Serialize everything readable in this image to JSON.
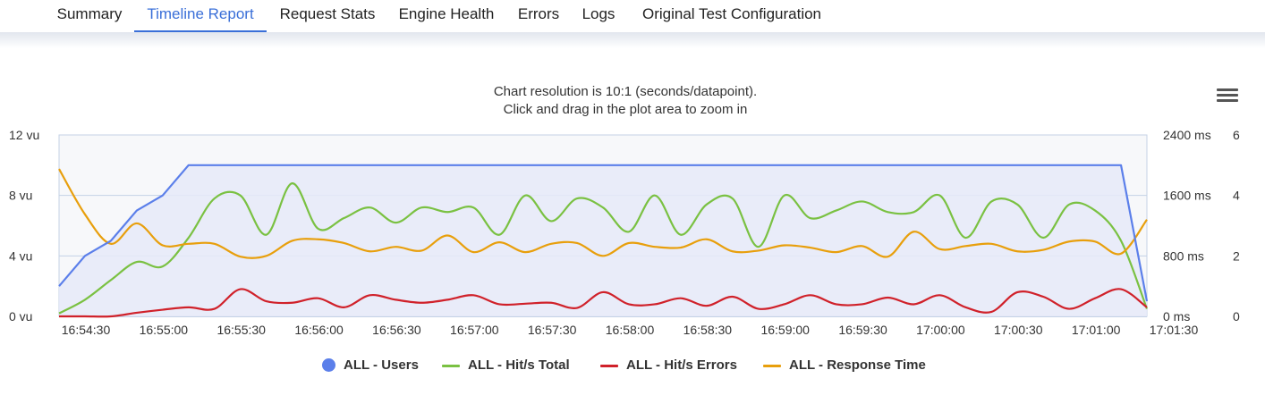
{
  "tabs": [
    {
      "label": "Summary",
      "active": false
    },
    {
      "label": "Timeline Report",
      "active": true
    },
    {
      "label": "Request Stats",
      "active": false
    },
    {
      "label": "Engine Health",
      "active": false
    },
    {
      "label": "Errors",
      "active": false
    },
    {
      "label": "Logs",
      "active": false
    },
    {
      "label": "Original Test Configuration",
      "active": false
    }
  ],
  "chart": {
    "subtitle_line1": "Chart resolution is 10:1 (seconds/datapoint).",
    "subtitle_line2": "Click and drag in the plot area to zoom in",
    "menu_icon": "hamburger-menu-icon"
  },
  "colors": {
    "users": "#5b7fea",
    "hits_total": "#7ac142",
    "hits_errors": "#d0212a",
    "response_time": "#e89f0c",
    "plot_bg": "#f7f8fa",
    "area_fill": "#e6eaf8",
    "grid": "#c4d2e6",
    "active_tab": "#3a6fd8"
  },
  "chart_data": {
    "type": "line",
    "x": [
      "16:54:30",
      "16:54:40",
      "16:54:50",
      "16:55:00",
      "16:55:10",
      "16:55:20",
      "16:55:30",
      "16:55:40",
      "16:55:50",
      "16:56:00",
      "16:56:10",
      "16:56:20",
      "16:56:30",
      "16:56:40",
      "16:56:50",
      "16:57:00",
      "16:57:10",
      "16:57:20",
      "16:57:30",
      "16:57:40",
      "16:57:50",
      "16:58:00",
      "16:58:10",
      "16:58:20",
      "16:58:30",
      "16:58:40",
      "16:58:50",
      "16:59:00",
      "16:59:10",
      "16:59:20",
      "16:59:30",
      "16:59:40",
      "16:59:50",
      "17:00:00",
      "17:00:10",
      "17:00:20",
      "17:00:30",
      "17:00:40",
      "17:00:50",
      "17:01:00",
      "17:01:10",
      "17:01:20",
      "17:01:30"
    ],
    "x_ticks": [
      "16:54:30",
      "16:55:00",
      "16:55:30",
      "16:56:00",
      "16:56:30",
      "16:57:00",
      "16:57:30",
      "16:58:00",
      "16:58:30",
      "16:59:00",
      "16:59:30",
      "17:00:00",
      "17:00:30",
      "17:01:00",
      "17:01:30"
    ],
    "y_axes": [
      {
        "ticks": [
          "0 vu",
          "4 vu",
          "8 vu",
          "12 vu"
        ],
        "range": [
          0,
          12
        ]
      },
      {
        "ticks": [
          "0 ms",
          "800 ms",
          "1600 ms",
          "2400 ms"
        ],
        "range": [
          0,
          2400
        ]
      },
      {
        "ticks": [
          "0",
          "2",
          "4",
          "6"
        ],
        "range": [
          0,
          6
        ]
      }
    ],
    "grid": true,
    "legend_position": "bottom-center",
    "series": [
      {
        "name": "ALL - Users",
        "axis": 0,
        "curve": "straight",
        "area": true,
        "values": [
          2,
          4,
          5,
          7,
          8,
          10,
          10,
          10,
          10,
          10,
          10,
          10,
          10,
          10,
          10,
          10,
          10,
          10,
          10,
          10,
          10,
          10,
          10,
          10,
          10,
          10,
          10,
          10,
          10,
          10,
          10,
          10,
          10,
          10,
          10,
          10,
          10,
          10,
          10,
          10,
          10,
          10,
          1
        ]
      },
      {
        "name": "ALL - Hit/s Total",
        "axis": 2,
        "curve": "smooth",
        "values": [
          0.1,
          0.55,
          1.2,
          1.8,
          1.65,
          2.6,
          3.9,
          4.0,
          2.7,
          4.4,
          2.9,
          3.25,
          3.6,
          3.1,
          3.6,
          3.45,
          3.6,
          2.7,
          4.0,
          3.15,
          3.9,
          3.6,
          2.8,
          4.0,
          2.7,
          3.7,
          3.9,
          2.3,
          4.0,
          3.25,
          3.5,
          3.8,
          3.45,
          3.45,
          4.0,
          2.6,
          3.8,
          3.7,
          2.6,
          3.7,
          3.5,
          2.5,
          0.25
        ]
      },
      {
        "name": "ALL - Hit/s Errors",
        "axis": 2,
        "curve": "smooth",
        "values": [
          0,
          0,
          0,
          0.12,
          0.22,
          0.3,
          0.25,
          0.9,
          0.5,
          0.45,
          0.6,
          0.3,
          0.7,
          0.55,
          0.45,
          0.55,
          0.7,
          0.4,
          0.42,
          0.45,
          0.28,
          0.8,
          0.4,
          0.4,
          0.6,
          0.35,
          0.65,
          0.25,
          0.4,
          0.7,
          0.4,
          0.4,
          0.62,
          0.4,
          0.7,
          0.3,
          0.15,
          0.8,
          0.65,
          0.25,
          0.6,
          0.9,
          0.3
        ]
      },
      {
        "name": "ALL - Response Time",
        "axis": 1,
        "curve": "smooth",
        "values": [
          1950,
          1350,
          960,
          1230,
          940,
          960,
          960,
          790,
          800,
          1000,
          1020,
          970,
          860,
          920,
          870,
          1070,
          850,
          980,
          850,
          960,
          970,
          800,
          970,
          920,
          910,
          1020,
          860,
          870,
          940,
          910,
          850,
          930,
          790,
          1120,
          890,
          930,
          960,
          860,
          880,
          990,
          990,
          830,
          1280
        ]
      }
    ]
  }
}
